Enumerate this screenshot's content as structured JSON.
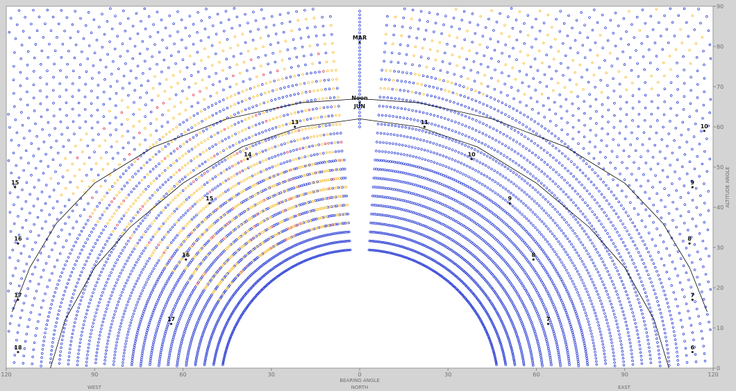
{
  "chart_data": {
    "type": "scatter",
    "title": "",
    "xlabel": "BEARING ANGLE",
    "xlabel_sub": "NORTH",
    "ylabel": "ALTITUDE ANGLE",
    "direction_labels": {
      "west": "WEST",
      "east": "EAST"
    },
    "xlim": [
      -120,
      120
    ],
    "ylim": [
      0,
      90
    ],
    "x_ticks": [
      {
        "value": -120,
        "label": "120"
      },
      {
        "value": -90,
        "label": "90"
      },
      {
        "value": -60,
        "label": "60"
      },
      {
        "value": -30,
        "label": "30"
      },
      {
        "value": 0,
        "label": "0"
      },
      {
        "value": 30,
        "label": "30"
      },
      {
        "value": 60,
        "label": "60"
      },
      {
        "value": 90,
        "label": "90"
      },
      {
        "value": 120,
        "label": "120"
      }
    ],
    "y_ticks": [
      0,
      10,
      20,
      30,
      40,
      50,
      60,
      70,
      80,
      90
    ],
    "grid": false,
    "point_colors": {
      "shaded": "#1a2fd0",
      "sunlit": "#f5b820",
      "mixed": "#e0304a"
    },
    "sun_path_color": "#000000",
    "solstice_paths": [
      {
        "name": "JUN",
        "points": [
          [
            -118,
            14
          ],
          [
            -112,
            25
          ],
          [
            -103,
            36
          ],
          [
            -90,
            46
          ],
          [
            -70,
            55
          ],
          [
            -45,
            62
          ],
          [
            -20,
            66
          ],
          [
            0,
            67
          ],
          [
            20,
            66
          ],
          [
            45,
            62
          ],
          [
            70,
            55
          ],
          [
            90,
            46
          ],
          [
            103,
            36
          ],
          [
            112,
            25
          ],
          [
            118,
            14
          ]
        ]
      },
      {
        "name": "MAR",
        "points": [
          [
            -105,
            0
          ],
          [
            -100,
            12
          ],
          [
            -90,
            25
          ],
          [
            -78,
            35
          ],
          [
            -60,
            46
          ],
          [
            -40,
            55
          ],
          [
            -20,
            60
          ],
          [
            0,
            62
          ],
          [
            20,
            60
          ],
          [
            40,
            55
          ],
          [
            60,
            46
          ],
          [
            78,
            35
          ],
          [
            90,
            25
          ],
          [
            100,
            12
          ],
          [
            105,
            0
          ]
        ]
      }
    ],
    "hour_markers": [
      {
        "label": "Noon",
        "sub": "JUN",
        "x": 0,
        "y": 66
      },
      {
        "label": "MAR",
        "x": 0,
        "y": 81
      },
      {
        "label": "13",
        "x": -22,
        "y": 60
      },
      {
        "label": "14",
        "x": -38,
        "y": 52
      },
      {
        "label": "15",
        "x": -51,
        "y": 41
      },
      {
        "label": "16",
        "x": -59,
        "y": 27
      },
      {
        "label": "17",
        "x": -64,
        "y": 11
      },
      {
        "label": "11",
        "x": 22,
        "y": 60
      },
      {
        "label": "10",
        "x": 38,
        "y": 52
      },
      {
        "label": "9",
        "x": 51,
        "y": 41
      },
      {
        "label": "8",
        "x": 59,
        "y": 27
      },
      {
        "label": "7",
        "x": 64,
        "y": 11
      },
      {
        "label": "15",
        "x": -117,
        "y": 45
      },
      {
        "label": "16",
        "x": -116,
        "y": 31
      },
      {
        "label": "17",
        "x": -116,
        "y": 17
      },
      {
        "label": "18",
        "x": -116,
        "y": 4
      },
      {
        "label": "10",
        "x": 117,
        "y": 59
      },
      {
        "label": "9",
        "x": 113,
        "y": 45
      },
      {
        "label": "8",
        "x": 112,
        "y": 31
      },
      {
        "label": "7",
        "x": 113,
        "y": 17
      },
      {
        "label": "6",
        "x": 113,
        "y": 4
      }
    ]
  }
}
